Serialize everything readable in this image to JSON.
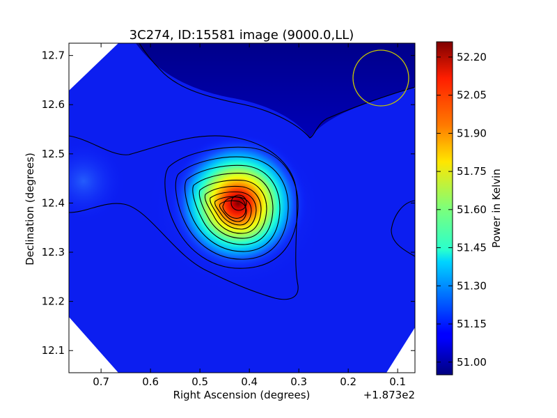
{
  "chart_data": {
    "type": "heatmap",
    "title": "3C274, ID:15581 image (9000.0,LL)",
    "xlabel": "Right Ascension (degrees)",
    "ylabel": "Declination (degrees)",
    "x_offset_label": "+1.873e2",
    "xlim": [
      0.765,
      0.065
    ],
    "ylim": [
      12.055,
      12.725
    ],
    "x_ticks": [
      0.7,
      0.6,
      0.5,
      0.4,
      0.3,
      0.2,
      0.1
    ],
    "x_tick_labels": [
      "0.7",
      "0.6",
      "0.5",
      "0.4",
      "0.3",
      "0.2",
      "0.1"
    ],
    "y_ticks": [
      12.1,
      12.2,
      12.3,
      12.4,
      12.5,
      12.6,
      12.7
    ],
    "y_tick_labels": [
      "12.1",
      "12.2",
      "12.3",
      "12.4",
      "12.5",
      "12.6",
      "12.7"
    ],
    "colorbar": {
      "label": "Power in Kelvin",
      "min": 50.95,
      "max": 52.26,
      "ticks": [
        51.0,
        51.15,
        51.3,
        51.45,
        51.6,
        51.75,
        51.9,
        52.05,
        52.2
      ],
      "tick_labels": [
        "51.00",
        "51.15",
        "51.30",
        "51.45",
        "51.60",
        "51.75",
        "51.90",
        "52.05",
        "52.20"
      ]
    },
    "peak": {
      "ra": 0.415,
      "dec": 12.4,
      "value": 52.24
    },
    "background_value": 51.1,
    "colormap": "jet",
    "beam_color": "#c8c800"
  }
}
